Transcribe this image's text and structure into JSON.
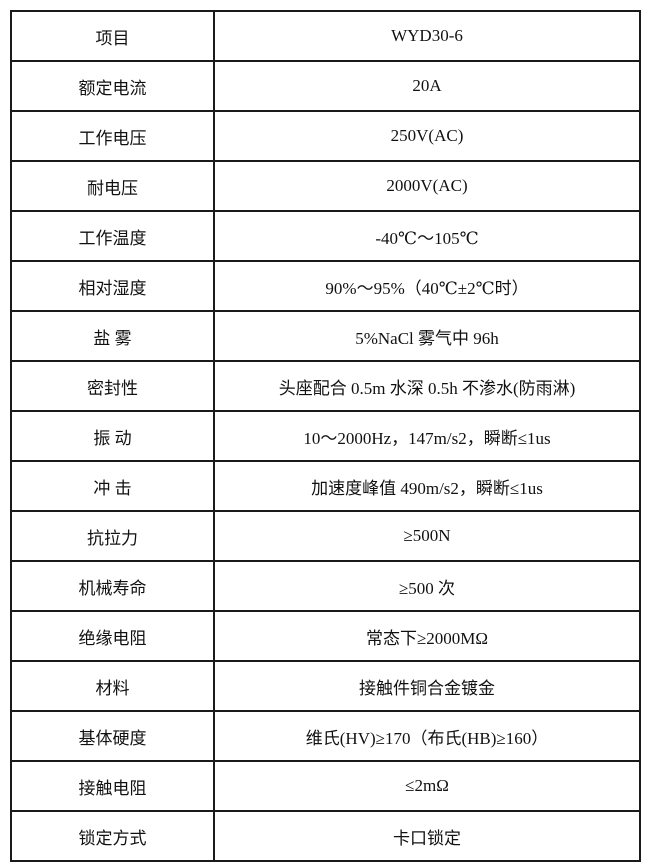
{
  "rows": [
    {
      "label": "项目",
      "value": "WYD30-6"
    },
    {
      "label": "额定电流",
      "value": "20A"
    },
    {
      "label": "工作电压",
      "value": "250V(AC)"
    },
    {
      "label": "耐电压",
      "value": "2000V(AC)"
    },
    {
      "label": "工作温度",
      "value": "-40℃～105℃"
    },
    {
      "label": "相对湿度",
      "value": "90%～95%（40℃±2℃时）"
    },
    {
      "label": "盐 雾",
      "value": "5%NaCl 雾气中 96h"
    },
    {
      "label": "密封性",
      "value": "头座配合 0.5m 水深 0.5h 不渗水(防雨淋)"
    },
    {
      "label": "振 动",
      "value": "10～2000Hz，147m/s2，瞬断≤1us"
    },
    {
      "label": "冲 击",
      "value": "加速度峰值 490m/s2，瞬断≤1us"
    },
    {
      "label": "抗拉力",
      "value": "≥500N"
    },
    {
      "label": "机械寿命",
      "value": "≥500 次"
    },
    {
      "label": "绝缘电阻",
      "value": "常态下≥2000MΩ"
    },
    {
      "label": "材料",
      "value": "接触件铜合金镀金"
    },
    {
      "label": "基体硬度",
      "value": "维氏(HV)≥170（布氏(HB)≥160）"
    },
    {
      "label": "接触电阻",
      "value": "≤2mΩ"
    },
    {
      "label": "锁定方式",
      "value": "卡口锁定"
    }
  ]
}
